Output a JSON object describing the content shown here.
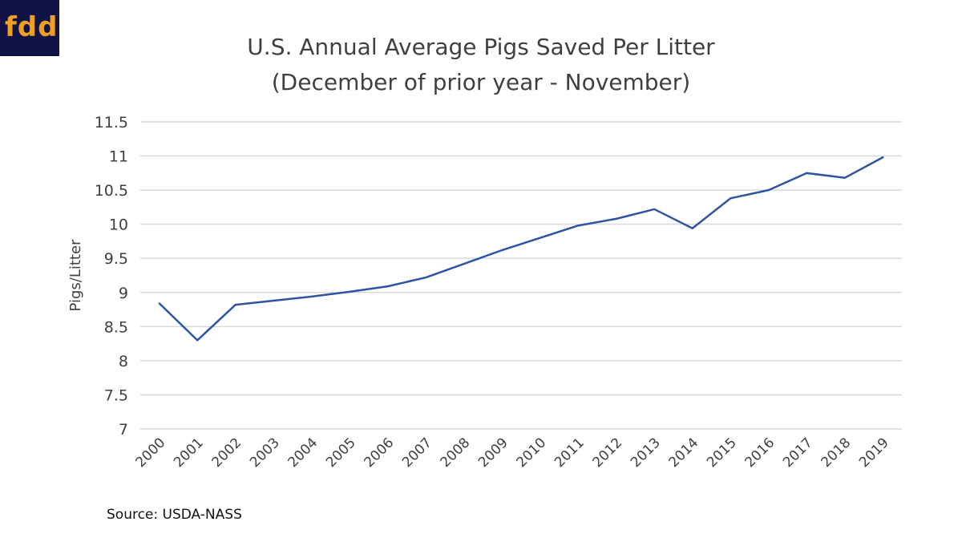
{
  "logo": {
    "text": "fdd",
    "colors": {
      "background": "#0f1346",
      "text": "#f0a020"
    }
  },
  "chart_data": {
    "type": "line",
    "title": "U.S. Annual Average Pigs Saved Per Litter",
    "subtitle": "(December of prior year - November)",
    "xlabel": "",
    "ylabel": "Pigs/Litter",
    "ylim": [
      7,
      11.5
    ],
    "yticks": [
      "7",
      "7.5",
      "8",
      "8.5",
      "9",
      "9.5",
      "10",
      "10.5",
      "11",
      "11.5"
    ],
    "grid": true,
    "categories": [
      "2000",
      "2001",
      "2002",
      "2003",
      "2004",
      "2005",
      "2006",
      "2007",
      "2008",
      "2009",
      "2010",
      "2011",
      "2012",
      "2013",
      "2014",
      "2015",
      "2016",
      "2017",
      "2018",
      "2019"
    ],
    "series": [
      {
        "values": [
          8.84,
          8.3,
          8.82,
          8.88,
          8.94,
          9.01,
          9.09,
          9.22,
          9.42,
          9.62,
          9.8,
          9.98,
          10.08,
          10.22,
          9.94,
          10.38,
          10.5,
          10.75,
          10.68,
          10.98
        ],
        "color": "#2e54a4"
      }
    ],
    "source": "Source: USDA-NASS"
  }
}
